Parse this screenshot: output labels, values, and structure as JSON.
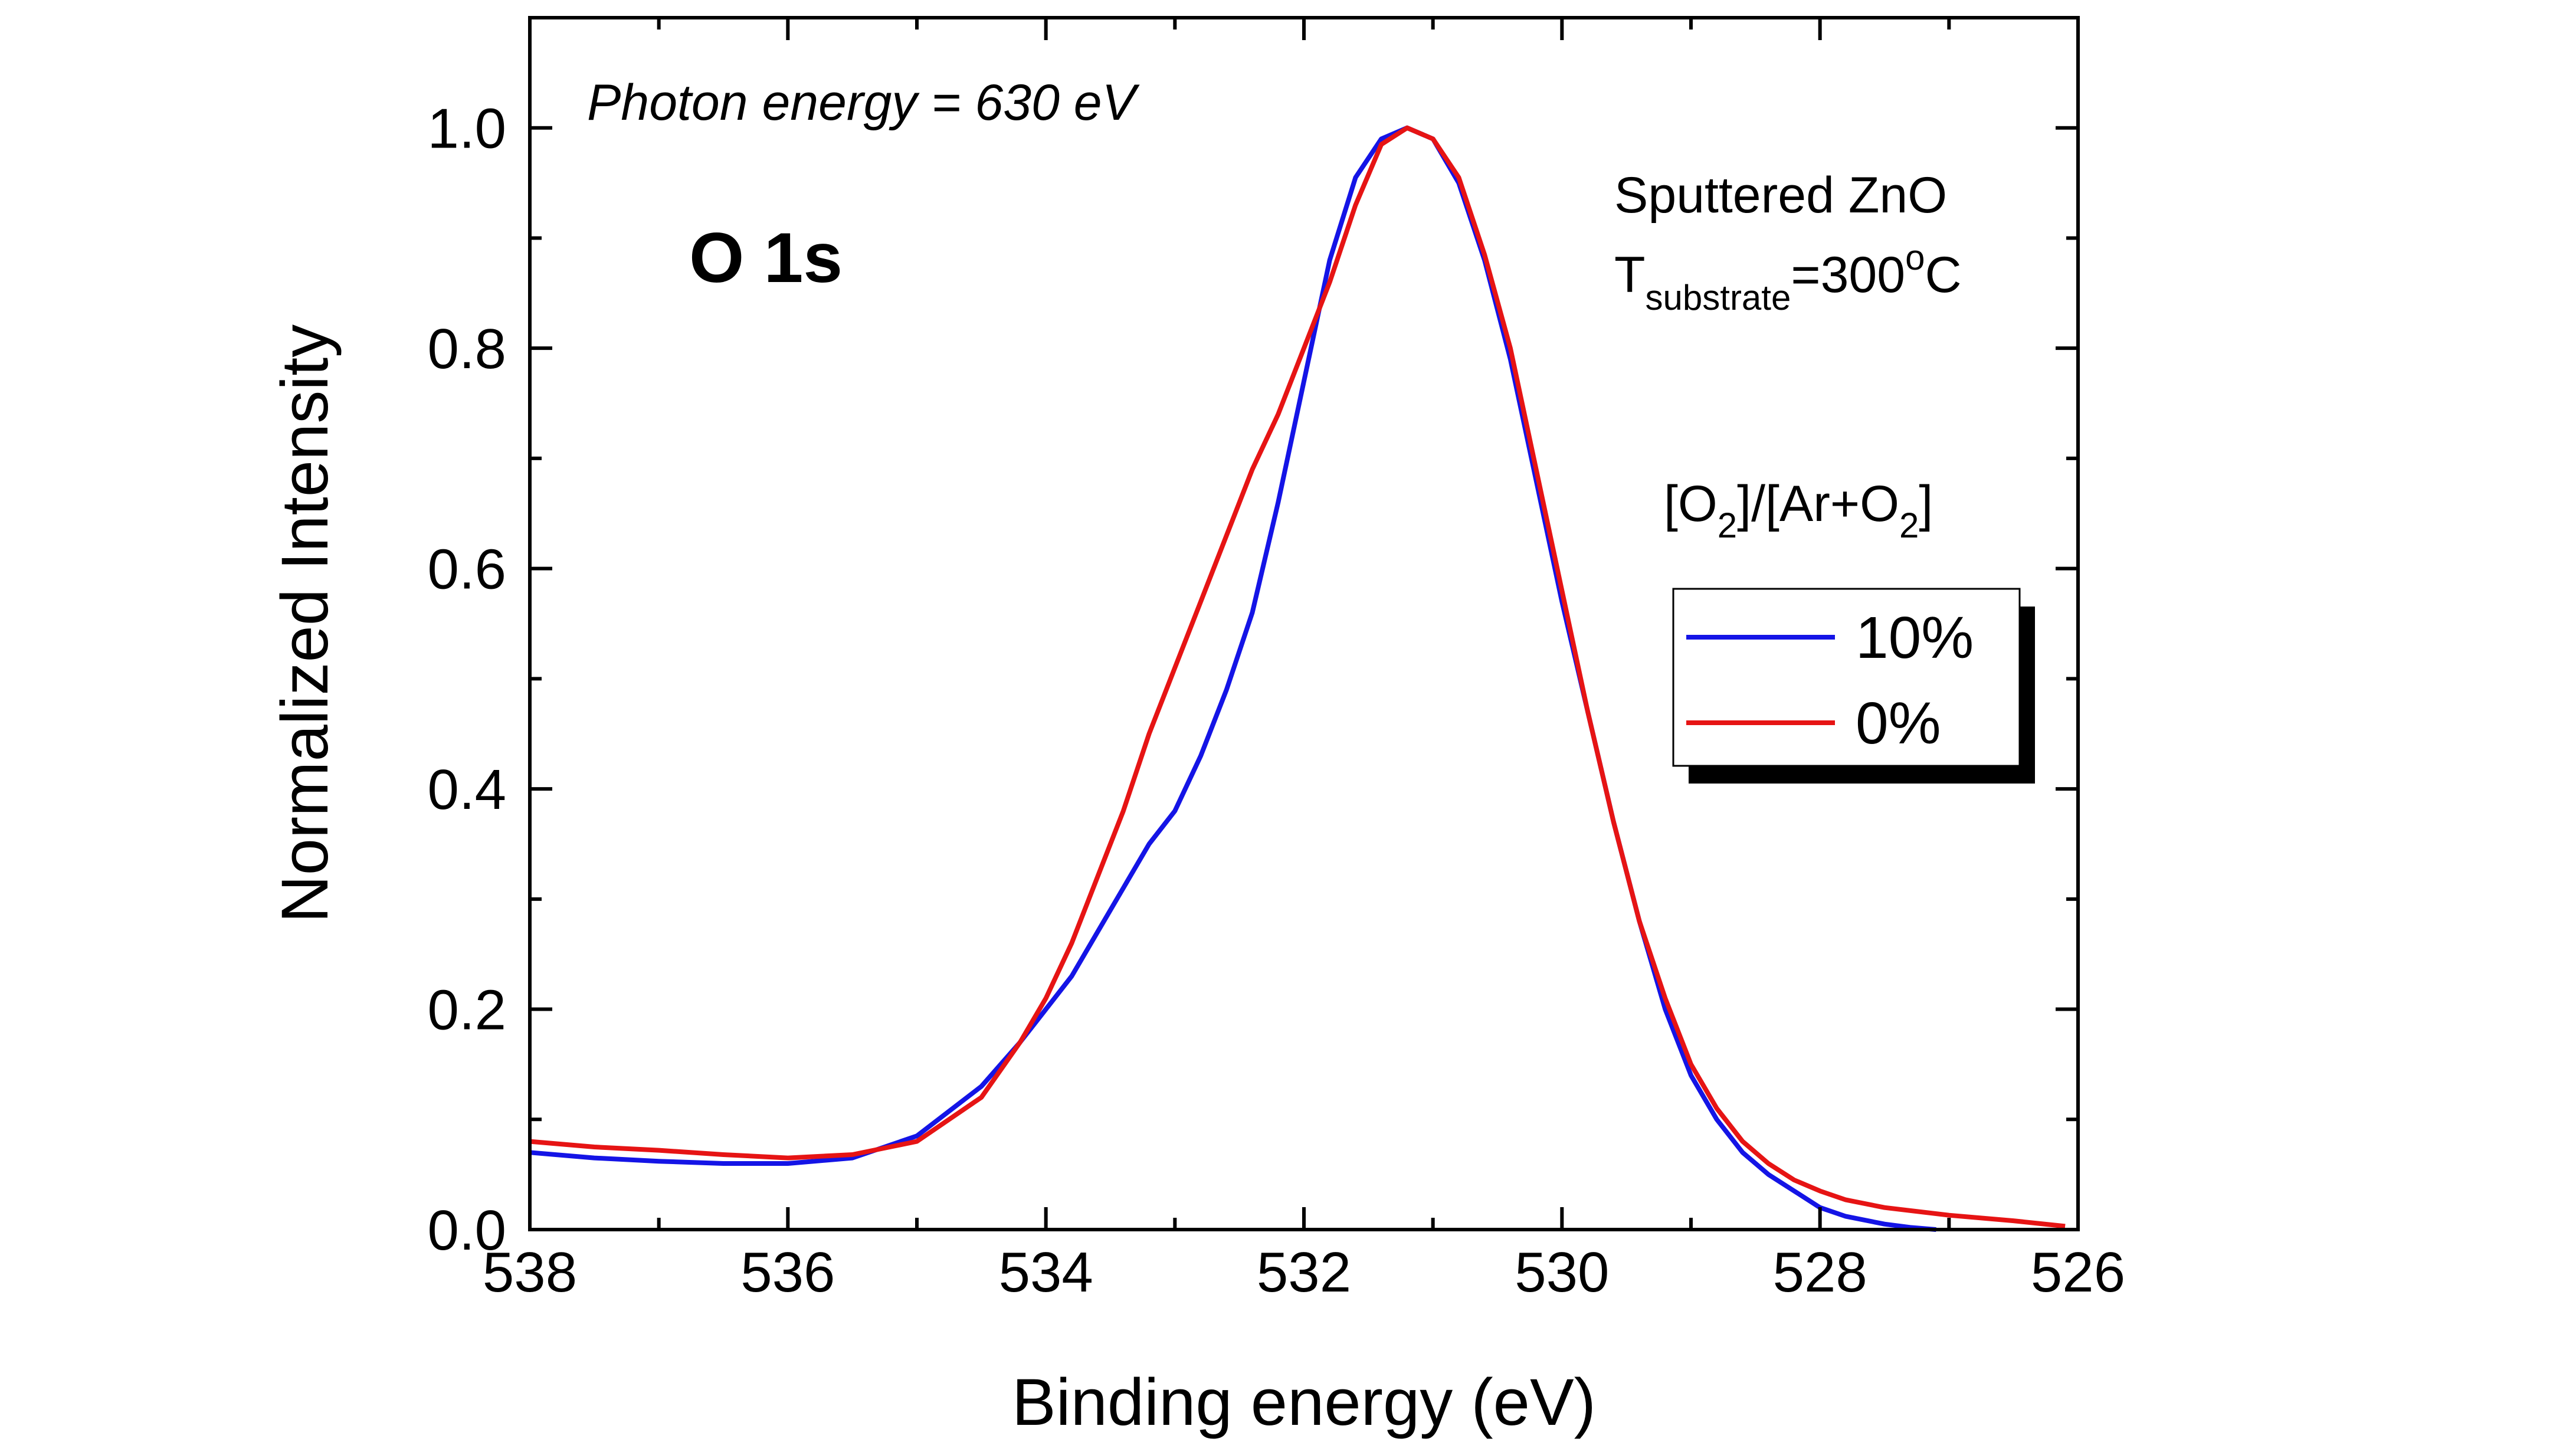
{
  "chart_data": {
    "type": "line",
    "xlabel": "Binding energy (eV)",
    "ylabel": "Normalized Intensity",
    "xlim": [
      538,
      526
    ],
    "ylim": [
      0.0,
      1.1
    ],
    "x_reversed": true,
    "x_ticks": [
      "538",
      "536",
      "534",
      "532",
      "530",
      "528",
      "526"
    ],
    "y_ticks": [
      "0.0",
      "0.2",
      "0.4",
      "0.6",
      "0.8",
      "1.0"
    ],
    "grid": false,
    "legend_title": "[O2]/[Ar+O2]",
    "legend_title_parts": {
      "prefix": "[O",
      "sub1": "2",
      "middle": "]/[Ar+O",
      "sub2": "2",
      "suffix": "]"
    },
    "legend_position": "right",
    "annotations": {
      "photon": "Photon energy = 630 eV",
      "core_level": "O 1s",
      "sample": "Sputtered ZnO",
      "temp_main": "T",
      "temp_sub": "substrate",
      "temp_eq": "=300",
      "temp_sup": "o",
      "temp_unit": "C"
    },
    "series": [
      {
        "name": "10%",
        "color": "#1414e6",
        "x": [
          538,
          537.5,
          537,
          536.5,
          536,
          535.5,
          535,
          534.5,
          534.2,
          534,
          533.8,
          533.6,
          533.4,
          533.2,
          533,
          532.8,
          532.6,
          532.4,
          532.2,
          532,
          531.8,
          531.6,
          531.4,
          531.2,
          531,
          530.8,
          530.6,
          530.4,
          530.2,
          530,
          529.8,
          529.6,
          529.4,
          529.2,
          529,
          528.8,
          528.6,
          528.4,
          528.2,
          528,
          527.8,
          527.5,
          527.3,
          527.1
        ],
        "y": [
          0.07,
          0.065,
          0.062,
          0.06,
          0.06,
          0.065,
          0.085,
          0.13,
          0.17,
          0.2,
          0.23,
          0.27,
          0.31,
          0.35,
          0.38,
          0.43,
          0.49,
          0.56,
          0.66,
          0.77,
          0.88,
          0.955,
          0.99,
          1.0,
          0.99,
          0.95,
          0.88,
          0.79,
          0.68,
          0.57,
          0.47,
          0.37,
          0.28,
          0.2,
          0.14,
          0.1,
          0.07,
          0.05,
          0.035,
          0.02,
          0.012,
          0.005,
          0.002,
          0.0
        ]
      },
      {
        "name": "0%",
        "color": "#e61414",
        "x": [
          538,
          537.5,
          537,
          536.5,
          536,
          535.5,
          535,
          534.5,
          534.2,
          534,
          533.8,
          533.6,
          533.4,
          533.2,
          533,
          532.8,
          532.6,
          532.4,
          532.2,
          532,
          531.8,
          531.6,
          531.4,
          531.2,
          531,
          530.8,
          530.6,
          530.4,
          530.2,
          530,
          529.8,
          529.6,
          529.4,
          529.2,
          529,
          528.8,
          528.6,
          528.4,
          528.2,
          528,
          527.8,
          527.5,
          527,
          526.5,
          526.1
        ],
        "y": [
          0.08,
          0.075,
          0.072,
          0.068,
          0.065,
          0.068,
          0.08,
          0.12,
          0.17,
          0.21,
          0.26,
          0.32,
          0.38,
          0.45,
          0.51,
          0.57,
          0.63,
          0.69,
          0.74,
          0.8,
          0.86,
          0.93,
          0.985,
          1.0,
          0.99,
          0.955,
          0.885,
          0.8,
          0.69,
          0.58,
          0.47,
          0.37,
          0.28,
          0.21,
          0.15,
          0.11,
          0.08,
          0.06,
          0.045,
          0.035,
          0.027,
          0.02,
          0.013,
          0.008,
          0.003
        ]
      }
    ]
  }
}
